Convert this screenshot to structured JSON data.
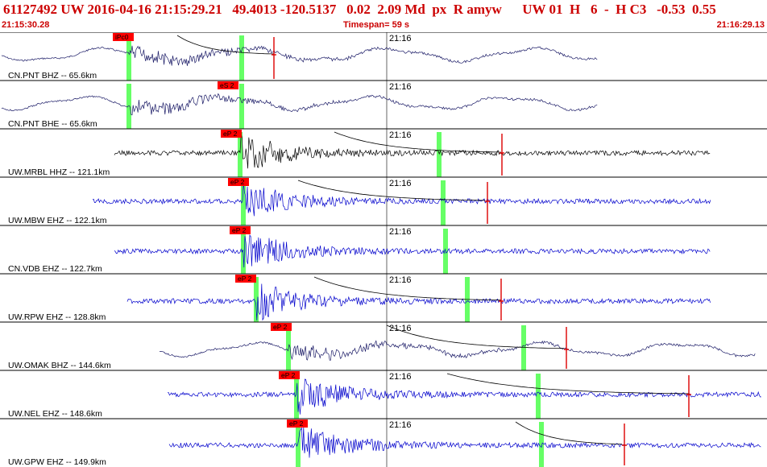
{
  "header": {
    "title": "61127492 UW 2016-04-16 21:15:29.21   49.4013 -120.5137   0.02  2.09 Md  px  R amyw      UW 01  H   6  -  H C3   -0.53  0.55",
    "start_time": "21:15:30.28",
    "timespan": "Timespan=  59 s",
    "end_time": "21:16:29.13"
  },
  "colors": {
    "phase_label_bg": "#ff0000",
    "phase_label_text": "#000000",
    "pick_marker": "#66ff66",
    "trace_blue": "#0000cc",
    "trace_navy": "#1a1a66",
    "trace_black": "#000000",
    "amp_marker": "#dd0000",
    "separator": "#000000"
  },
  "minute_label": "21:16",
  "traces": [
    {
      "label": "CN.PNT BHZ -- 65.6km",
      "phase": "iPc0",
      "color": "navy",
      "style": "long"
    },
    {
      "label": "CN.PNT BHE -- 65.6km",
      "phase": "eS 2",
      "color": "navy",
      "style": "long"
    },
    {
      "label": "UW.MRBL HHZ -- 121.1km",
      "phase": "eP 2",
      "color": "black",
      "style": "short"
    },
    {
      "label": "UW.MBW EHZ -- 122.1km",
      "phase": "eP 2",
      "color": "blue",
      "style": "short"
    },
    {
      "label": "CN.VDB EHZ -- 122.7km",
      "phase": "eP 2",
      "color": "blue",
      "style": "short"
    },
    {
      "label": "UW.RPW EHZ -- 128.8km",
      "phase": "eP 2",
      "color": "blue",
      "style": "short"
    },
    {
      "label": "UW.OMAK BHZ -- 144.6km",
      "phase": "eP 2",
      "color": "navy",
      "style": "long"
    },
    {
      "label": "UW.NEL EHZ -- 148.6km",
      "phase": "eP 2",
      "color": "blue",
      "style": "short"
    },
    {
      "label": "UW.GPW EHZ -- 149.9km",
      "phase": "eP 2",
      "color": "blue",
      "style": "short"
    }
  ]
}
